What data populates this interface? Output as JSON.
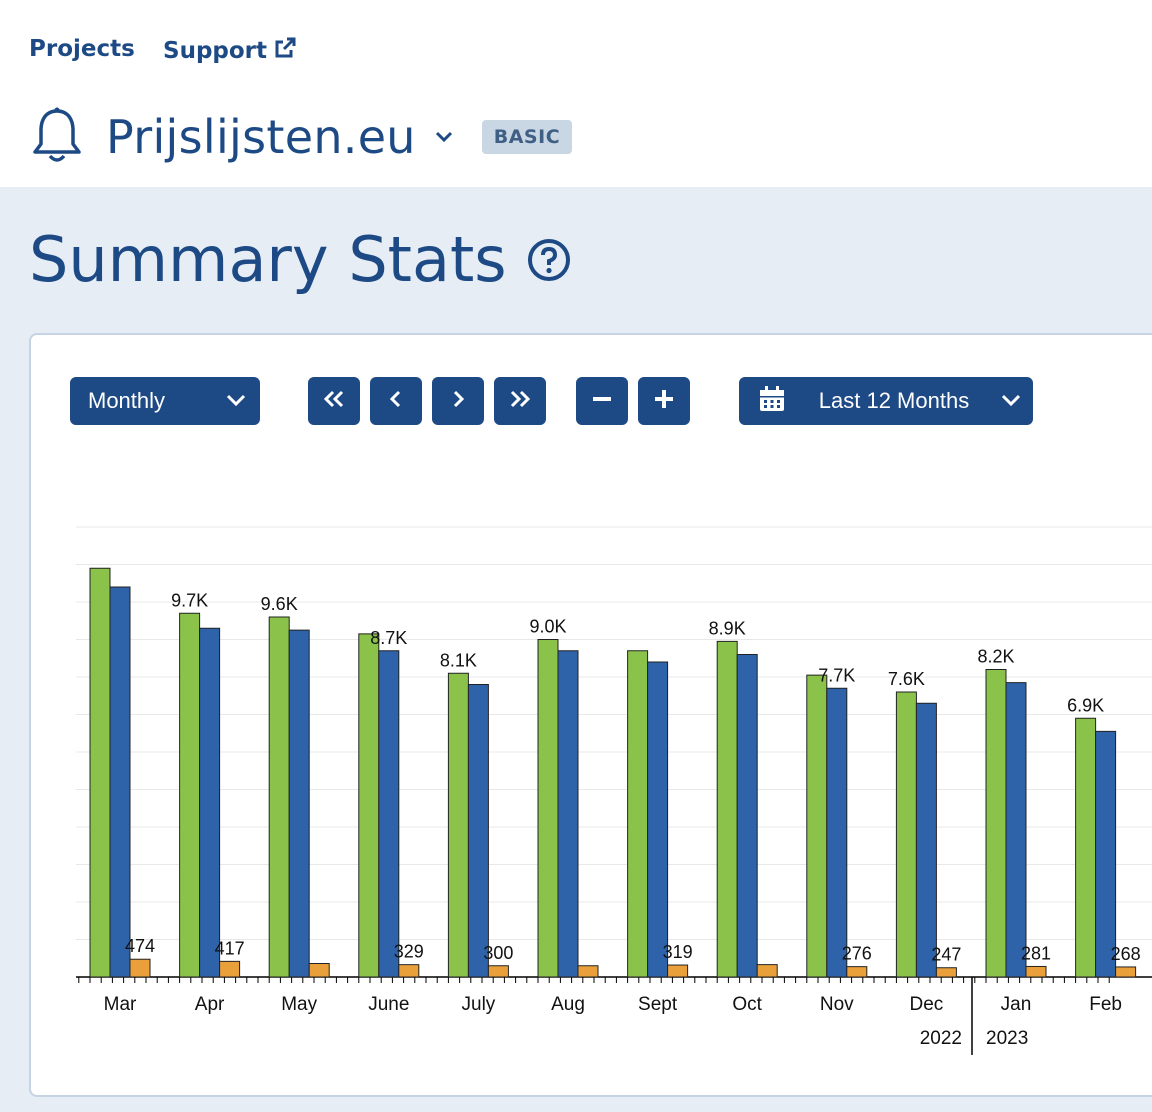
{
  "nav": {
    "projects": "Projects",
    "support": "Support"
  },
  "project": {
    "name": "Prijslijsten.eu",
    "badge": "BASIC"
  },
  "page": {
    "title": "Summary Stats"
  },
  "controls": {
    "period": "Monthly",
    "range": "Last 12 Months"
  },
  "colors": {
    "primary": "#1d4a85",
    "green": "#8bc34a",
    "blue": "#2e63aa",
    "orange": "#eaa03a"
  },
  "icons": [
    "bell-icon",
    "chevron-down-icon",
    "external-link-icon",
    "help-icon",
    "double-left-icon",
    "left-icon",
    "right-icon",
    "double-right-icon",
    "minus-icon",
    "plus-icon",
    "calendar-icon"
  ],
  "chart_data": {
    "type": "bar",
    "categories": [
      "Mar",
      "Apr",
      "May",
      "June",
      "July",
      "Aug",
      "Sept",
      "Oct",
      "Nov",
      "Dec",
      "Jan",
      "Feb"
    ],
    "year_labels": [
      "2022",
      "2023"
    ],
    "series": [
      {
        "values": [
          10900,
          9700,
          9600,
          9150,
          8100,
          9000,
          8700,
          8950,
          8050,
          7600,
          8200,
          6900
        ],
        "labels": [
          "",
          "9.7K",
          "9.6K",
          "",
          "8.1K",
          "9.0K",
          "",
          "8.9K",
          "",
          "7.6K",
          "8.2K",
          "6.9K"
        ]
      },
      {
        "values": [
          10400,
          9300,
          9250,
          8700,
          7800,
          8700,
          8400,
          8600,
          7700,
          7300,
          7850,
          6550
        ],
        "labels": [
          "",
          "",
          "",
          "8.7K",
          "",
          "",
          "",
          "",
          "7.7K",
          "",
          "",
          ""
        ]
      },
      {
        "values": [
          474,
          417,
          360,
          329,
          300,
          300,
          319,
          330,
          276,
          247,
          281,
          268
        ],
        "labels": [
          "474",
          "417",
          "",
          "329",
          "300",
          "",
          "319",
          "",
          "276",
          "247",
          "281",
          "268"
        ]
      }
    ]
  }
}
